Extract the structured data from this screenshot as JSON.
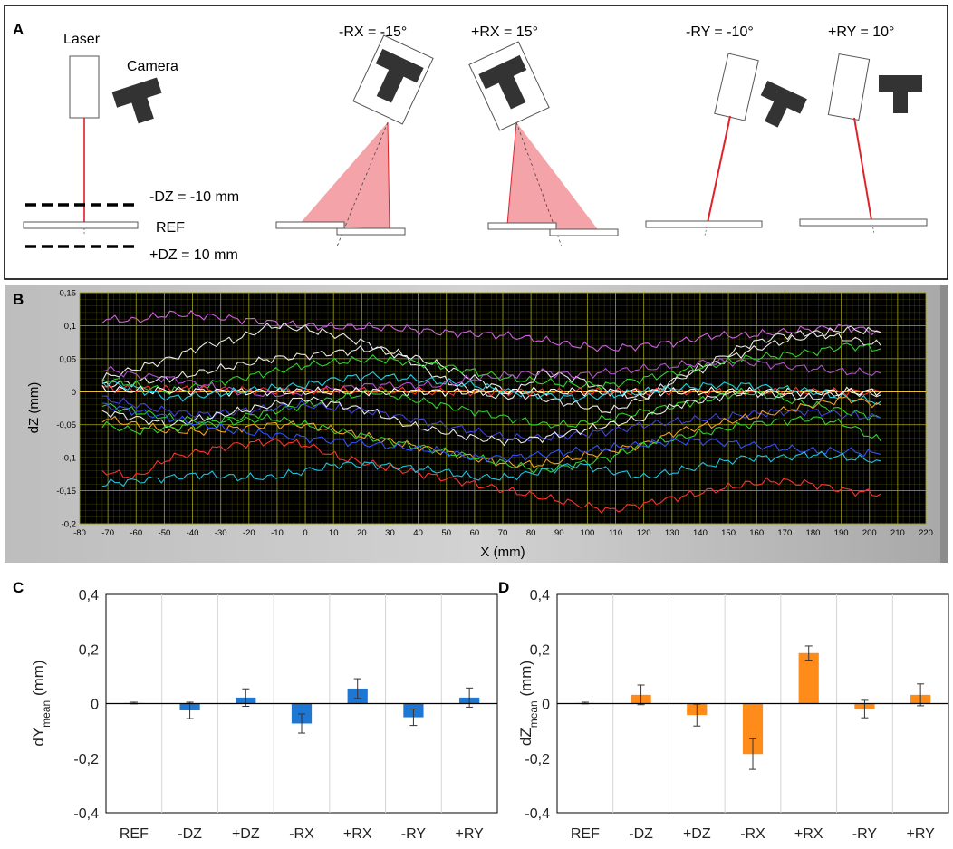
{
  "panel_a": {
    "letter": "A",
    "laser_label": "Laser",
    "camera_label": "Camera",
    "dz_minus_label": "-DZ = -10 mm",
    "ref_label": "REF",
    "dz_plus_label": "+DZ = 10 mm",
    "rx_minus_label": "-RX = -15°",
    "rx_plus_label": "+RX = 15°",
    "ry_minus_label": "-RY = -10°",
    "ry_plus_label": "+RY = 10°",
    "colors": {
      "laser_beam": "#e0202a",
      "fan": "#f4a3a8",
      "camera": "#333333"
    }
  },
  "chart_data": [
    {
      "panel": "B",
      "type": "line",
      "xlabel": "X (mm)",
      "ylabel": "dZ (mm)",
      "xlim": [
        -80,
        220
      ],
      "ylim": [
        -0.2,
        0.15
      ],
      "x_ticks": [
        "-80",
        "-70",
        "-60",
        "-50",
        "-40",
        "-30",
        "-20",
        "-10",
        "0",
        "10",
        "20",
        "30",
        "40",
        "50",
        "60",
        "70",
        "80",
        "90",
        "100",
        "110",
        "120",
        "130",
        "140",
        "150",
        "160",
        "170",
        "180",
        "190",
        "200",
        "210",
        "220"
      ],
      "y_ticks": [
        "0,15",
        "0,1",
        "0,05",
        "0",
        "-0,05",
        "-0,1",
        "-0,15",
        "-0,2"
      ],
      "grid": true,
      "background": "#000000",
      "grid_color": "#9a9a14",
      "x": [
        -72,
        -60,
        -48,
        -36,
        -24,
        -12,
        0,
        12,
        24,
        36,
        48,
        60,
        72,
        84,
        96,
        108,
        120,
        132,
        144,
        156,
        168,
        180,
        192,
        204
      ],
      "series": [
        {
          "color": "#d060e0",
          "values": [
            0.11,
            0.108,
            0.118,
            0.115,
            0.11,
            0.105,
            0.1,
            0.098,
            0.098,
            0.095,
            0.09,
            0.088,
            0.085,
            0.078,
            0.07,
            0.065,
            0.07,
            0.075,
            0.085,
            0.085,
            0.09,
            0.095,
            0.098,
            0.09
          ]
        },
        {
          "color": "#e8e8e8",
          "values": [
            0.02,
            0.035,
            0.05,
            0.07,
            0.08,
            0.1,
            0.095,
            0.085,
            0.07,
            0.05,
            0.02,
            0.0,
            -0.01,
            0.03,
            0.02,
            0.0,
            -0.01,
            0.02,
            0.045,
            0.07,
            0.085,
            0.09,
            0.08,
            0.07
          ]
        },
        {
          "color": "#e8e8e8",
          "values": [
            0.01,
            0.015,
            0.02,
            0.03,
            0.04,
            0.05,
            0.055,
            0.06,
            0.065,
            0.055,
            0.04,
            0.02,
            0.0,
            -0.01,
            -0.02,
            -0.03,
            -0.01,
            0.02,
            0.04,
            0.06,
            0.075,
            0.085,
            0.095,
            0.09
          ]
        },
        {
          "color": "#30d030",
          "values": [
            0.02,
            0.01,
            0.0,
            0.01,
            0.02,
            0.03,
            0.04,
            0.045,
            0.05,
            0.045,
            0.04,
            0.03,
            0.02,
            0.015,
            0.01,
            0.01,
            0.02,
            0.03,
            0.04,
            0.05,
            0.055,
            0.06,
            0.07,
            0.065
          ]
        },
        {
          "color": "#b050d0",
          "values": [
            0.035,
            0.025,
            0.02,
            0.01,
            0.0,
            -0.005,
            0.0,
            0.005,
            0.01,
            0.01,
            0.01,
            0.02,
            0.025,
            0.03,
            0.025,
            0.03,
            0.035,
            0.04,
            0.045,
            0.045,
            0.04,
            0.035,
            0.03,
            0.028
          ]
        },
        {
          "color": "#ff3030",
          "values": [
            0.005,
            0.004,
            0.003,
            0.003,
            0.002,
            0.002,
            0.002,
            0.002,
            0.001,
            0.001,
            0.0,
            0.0,
            0.0,
            -0.001,
            0.0,
            0.0,
            0.0,
            0.001,
            0.0,
            0.0,
            0.0,
            0.0,
            0.0,
            0.0
          ]
        },
        {
          "color": "#ffffff",
          "values": [
            0.003,
            0.002,
            0.002,
            0.001,
            0.0,
            0.0,
            0.0,
            0.0,
            0.0,
            0.0,
            0.0,
            0.0,
            0.0,
            0.0,
            0.0,
            0.0,
            0.0,
            0.0,
            0.0,
            0.0,
            0.0,
            0.0,
            0.0,
            0.0
          ]
        },
        {
          "color": "#20d0e0",
          "values": [
            0.015,
            0.005,
            -0.01,
            -0.005,
            0.0,
            0.005,
            0.01,
            0.02,
            0.025,
            0.02,
            0.015,
            0.01,
            0.0,
            -0.005,
            -0.01,
            -0.005,
            0.0,
            0.005,
            0.01,
            0.01,
            0.005,
            0.0,
            -0.01,
            -0.015
          ]
        },
        {
          "color": "#30d030",
          "values": [
            -0.02,
            -0.03,
            -0.04,
            -0.045,
            -0.04,
            -0.03,
            -0.02,
            -0.01,
            0.0,
            -0.01,
            -0.02,
            -0.03,
            -0.04,
            -0.05,
            -0.05,
            -0.04,
            -0.03,
            -0.02,
            -0.01,
            0.0,
            -0.01,
            -0.02,
            -0.03,
            -0.04
          ]
        },
        {
          "color": "#4040e0",
          "values": [
            -0.01,
            -0.02,
            -0.03,
            -0.035,
            -0.03,
            -0.025,
            -0.02,
            -0.025,
            -0.03,
            -0.04,
            -0.05,
            -0.06,
            -0.07,
            -0.07,
            -0.065,
            -0.06,
            -0.05,
            -0.045,
            -0.04,
            -0.035,
            -0.03,
            -0.03,
            -0.035,
            -0.04
          ]
        },
        {
          "color": "#e8e8e8",
          "values": [
            -0.03,
            -0.04,
            -0.05,
            -0.04,
            -0.03,
            -0.02,
            -0.01,
            -0.02,
            -0.03,
            -0.05,
            -0.06,
            -0.07,
            -0.075,
            -0.07,
            -0.06,
            -0.05,
            -0.04,
            -0.02,
            -0.01,
            0.0,
            -0.005,
            -0.01,
            0.0,
            -0.005
          ]
        },
        {
          "color": "#f0a020",
          "values": [
            -0.04,
            -0.05,
            -0.06,
            -0.06,
            -0.055,
            -0.05,
            -0.05,
            -0.06,
            -0.07,
            -0.08,
            -0.09,
            -0.1,
            -0.11,
            -0.11,
            -0.1,
            -0.09,
            -0.08,
            -0.06,
            -0.05,
            -0.04,
            -0.03,
            -0.02,
            -0.01,
            -0.02
          ]
        },
        {
          "color": "#30d030",
          "values": [
            -0.05,
            -0.06,
            -0.055,
            -0.05,
            -0.045,
            -0.04,
            -0.05,
            -0.06,
            -0.07,
            -0.08,
            -0.09,
            -0.1,
            -0.11,
            -0.12,
            -0.11,
            -0.1,
            -0.08,
            -0.07,
            -0.06,
            -0.05,
            -0.045,
            -0.04,
            -0.05,
            -0.075
          ]
        },
        {
          "color": "#3050ff",
          "values": [
            -0.02,
            -0.03,
            -0.04,
            -0.05,
            -0.06,
            -0.065,
            -0.07,
            -0.075,
            -0.08,
            -0.085,
            -0.09,
            -0.1,
            -0.1,
            -0.095,
            -0.09,
            -0.085,
            -0.08,
            -0.075,
            -0.075,
            -0.08,
            -0.085,
            -0.09,
            -0.09,
            -0.095
          ]
        },
        {
          "color": "#ff3030",
          "values": [
            -0.12,
            -0.13,
            -0.1,
            -0.09,
            -0.08,
            -0.075,
            -0.08,
            -0.1,
            -0.11,
            -0.12,
            -0.13,
            -0.14,
            -0.15,
            -0.16,
            -0.17,
            -0.18,
            -0.17,
            -0.16,
            -0.15,
            -0.14,
            -0.135,
            -0.14,
            -0.15,
            -0.155
          ]
        },
        {
          "color": "#20c0e0",
          "values": [
            -0.14,
            -0.135,
            -0.13,
            -0.125,
            -0.13,
            -0.13,
            -0.12,
            -0.11,
            -0.11,
            -0.115,
            -0.12,
            -0.13,
            -0.13,
            -0.12,
            -0.11,
            -0.12,
            -0.13,
            -0.12,
            -0.11,
            -0.1,
            -0.1,
            -0.095,
            -0.1,
            -0.105
          ]
        }
      ]
    },
    {
      "panel": "C",
      "type": "bar",
      "categories": [
        "REF",
        "-DZ",
        "+DZ",
        "-RX",
        "+RX",
        "-RY",
        "+RY"
      ],
      "values": [
        0.002,
        -0.025,
        0.022,
        -0.073,
        0.055,
        -0.05,
        0.022
      ],
      "errors": [
        0.003,
        0.03,
        0.032,
        0.035,
        0.036,
        0.03,
        0.035
      ],
      "ylabel": "dYmean (mm)",
      "ylabel_main": "dY",
      "ylabel_sub": "mean",
      "ylabel_unit": " (mm)",
      "ylim": [
        -0.4,
        0.4
      ],
      "y_ticks": [
        "0,4",
        "0,2",
        "0",
        "-0,2",
        "-0,4"
      ],
      "color": "#1f77d4"
    },
    {
      "panel": "D",
      "type": "bar",
      "categories": [
        "REF",
        "-DZ",
        "+DZ",
        "-RX",
        "+RX",
        "-RY",
        "+RY"
      ],
      "values": [
        0.002,
        0.032,
        -0.042,
        -0.185,
        0.185,
        -0.02,
        0.032
      ],
      "errors": [
        0.003,
        0.036,
        0.04,
        0.056,
        0.026,
        0.032,
        0.04
      ],
      "ylabel": "dZmean (mm)",
      "ylabel_main": "dZ",
      "ylabel_sub": "mean",
      "ylabel_unit": " (mm)",
      "ylim": [
        -0.4,
        0.4
      ],
      "y_ticks": [
        "0,4",
        "0,2",
        "0",
        "-0,2",
        "-0,4"
      ],
      "color": "#ff8c1a"
    }
  ],
  "panel_letters": {
    "b": "B",
    "c": "C",
    "d": "D"
  }
}
